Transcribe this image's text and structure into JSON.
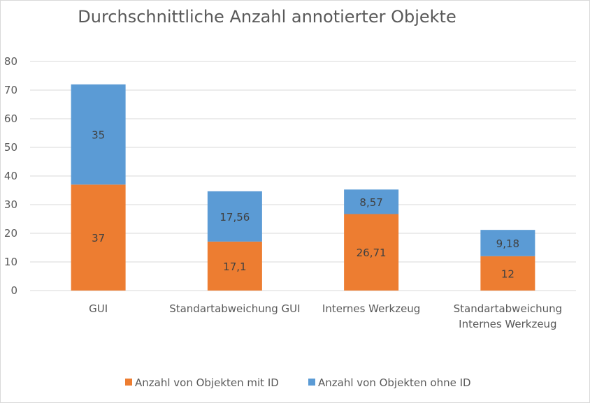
{
  "colors": {
    "series_with_id": "#ed7d31",
    "series_without_id": "#5b9bd5",
    "gridline": "#d9d9d9",
    "text": "#595959"
  },
  "chart_data": {
    "type": "bar",
    "stacked": true,
    "title": "Durchschnittliche Anzahl annotierter Objekte",
    "xlabel": "",
    "ylabel": "",
    "ylim": [
      0,
      80
    ],
    "yticks": [
      0,
      10,
      20,
      30,
      40,
      50,
      60,
      70,
      80
    ],
    "grid": true,
    "legend_position": "bottom",
    "categories": [
      [
        "GUI"
      ],
      [
        "Standartabweichung GUI"
      ],
      [
        "Internes Werkzeug"
      ],
      [
        "Standartabweichung",
        "Internes Werkzeug"
      ]
    ],
    "series": [
      {
        "name": "Anzahl von Objekten mit ID",
        "color": "#ed7d31",
        "values": [
          37,
          17.1,
          26.71,
          12
        ],
        "labels": [
          "37",
          "17,1",
          "26,71",
          "12"
        ]
      },
      {
        "name": "Anzahl von Objekten ohne ID",
        "color": "#5b9bd5",
        "values": [
          35,
          17.56,
          8.57,
          9.18
        ],
        "labels": [
          "35",
          "17,56",
          "8,57",
          "9,18"
        ]
      }
    ]
  }
}
